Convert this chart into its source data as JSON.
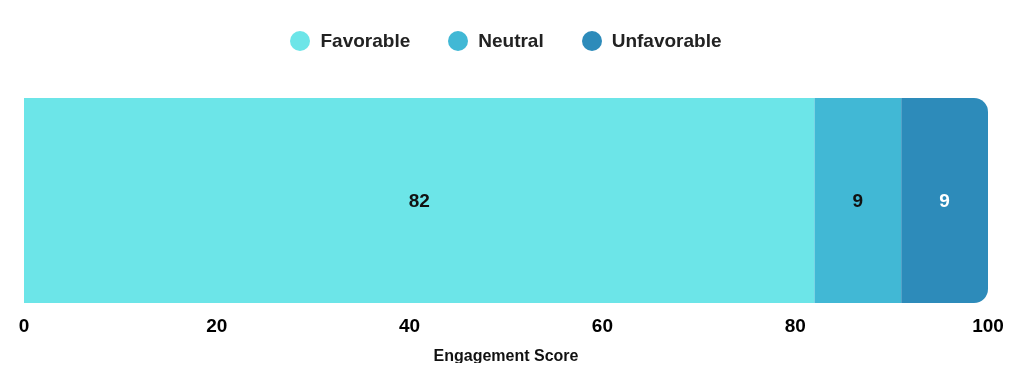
{
  "chart_data": {
    "type": "bar",
    "orientation": "horizontal",
    "stacked": true,
    "categories": [
      null
    ],
    "series": [
      {
        "name": "Favorable",
        "color": "#6ce5e8",
        "values": [
          82
        ]
      },
      {
        "name": "Neutral",
        "color": "#41b8d5",
        "values": [
          9
        ]
      },
      {
        "name": "Unfavorable",
        "color": "#2d8bba",
        "values": [
          9
        ]
      }
    ],
    "xlim": [
      0,
      100
    ],
    "xticks": [
      0,
      20,
      40,
      60,
      80,
      100
    ],
    "xlabel": "Engagement Score",
    "data_labels": true,
    "legend": "top",
    "grid": false
  }
}
